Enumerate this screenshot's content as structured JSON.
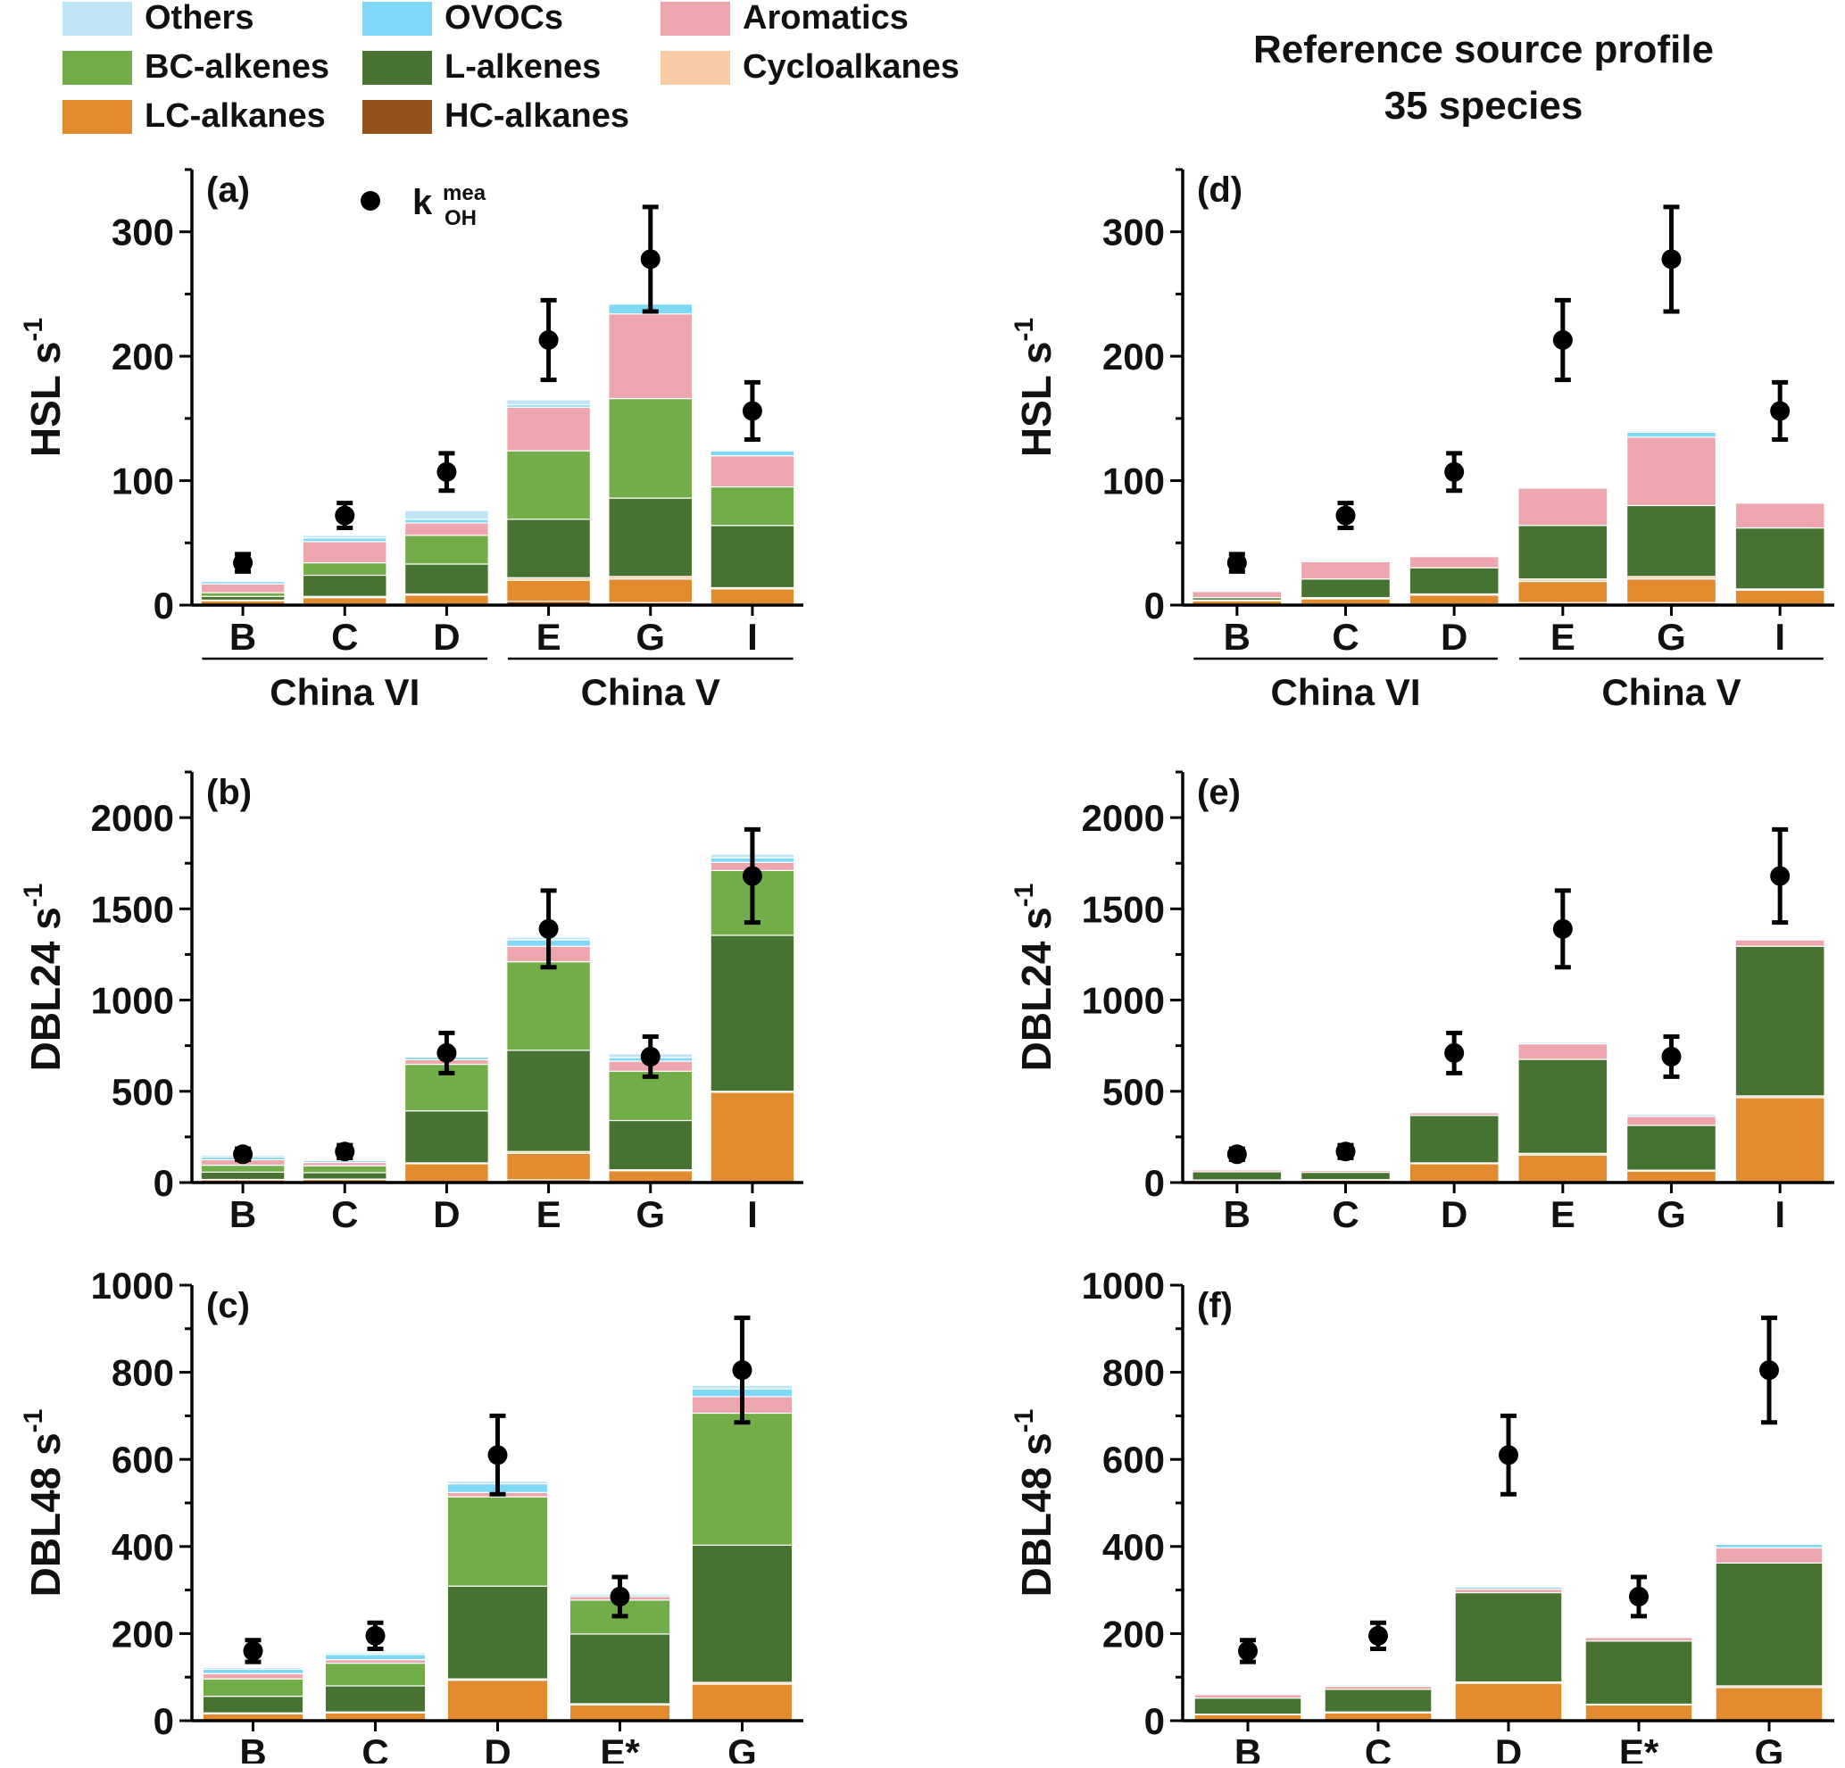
{
  "legend": [
    {
      "name": "Others",
      "color": "#bfe4f6"
    },
    {
      "name": "OVOCs",
      "color": "#7fd8f6"
    },
    {
      "name": "Aromatics",
      "color": "#eea6ae"
    },
    {
      "name": "BC-alkenes",
      "color": "#72ad4a"
    },
    {
      "name": "L-alkenes",
      "color": "#477332"
    },
    {
      "name": "Cycloalkanes",
      "color": "#f8cba4"
    },
    {
      "name": "LC-alkanes",
      "color": "#e28a2e"
    },
    {
      "name": "HC-alkanes",
      "color": "#94521b"
    }
  ],
  "reference_title": {
    "line1": "Reference source profile",
    "line2": "35 species"
  },
  "marker_label": {
    "main": "k",
    "sup": "mea",
    "sub": "OH"
  },
  "group_labels": {
    "china_vi": "China VI",
    "china_v": "China V"
  },
  "chart_data": [
    {
      "id": "a",
      "panel_label": "(a)",
      "type": "bar",
      "stacked": true,
      "ylabel": "HSL s",
      "ylabel_sup": "-1",
      "ylim": [
        0,
        350
      ],
      "yticks": [
        0,
        100,
        200,
        300
      ],
      "categories": [
        "B",
        "C",
        "D",
        "E",
        "G",
        "I"
      ],
      "groups": [
        {
          "label": "China VI",
          "from": 0,
          "to": 2
        },
        {
          "label": "China V",
          "from": 3,
          "to": 5
        }
      ],
      "series_order": [
        "HC-alkanes",
        "LC-alkanes",
        "Cycloalkanes",
        "L-alkenes",
        "BC-alkenes",
        "Aromatics",
        "OVOCs",
        "Others"
      ],
      "series": [
        {
          "name": "HC-alkanes",
          "values": [
            0.5,
            1,
            1,
            3,
            2,
            1
          ]
        },
        {
          "name": "LC-alkanes",
          "values": [
            3,
            5,
            7,
            17,
            19,
            12
          ]
        },
        {
          "name": "Cycloalkanes",
          "values": [
            0.5,
            1,
            1,
            2,
            2,
            1
          ]
        },
        {
          "name": "L-alkenes",
          "values": [
            3,
            17,
            24,
            47,
            63,
            50
          ]
        },
        {
          "name": "BC-alkenes",
          "values": [
            3,
            10,
            23,
            55,
            80,
            31
          ]
        },
        {
          "name": "Aromatics",
          "values": [
            7,
            17,
            10,
            35,
            68,
            25
          ]
        },
        {
          "name": "OVOCs",
          "values": [
            2,
            3,
            3,
            2,
            8,
            4
          ]
        },
        {
          "name": "Others",
          "values": [
            1,
            2,
            7,
            4,
            1,
            1
          ]
        }
      ],
      "measured": {
        "name": "k OH mea",
        "values": [
          34,
          72,
          107,
          213,
          278,
          156
        ],
        "err": [
          7,
          10,
          15,
          32,
          42,
          23
        ]
      }
    },
    {
      "id": "b",
      "panel_label": "(b)",
      "type": "bar",
      "stacked": true,
      "ylabel": "DBL24 s",
      "ylabel_sup": "-1",
      "ylim": [
        0,
        2250
      ],
      "yticks": [
        0,
        500,
        1000,
        1500,
        2000
      ],
      "categories": [
        "B",
        "C",
        "D",
        "E",
        "G",
        "I"
      ],
      "series_order": [
        "HC-alkanes",
        "LC-alkanes",
        "Cycloalkanes",
        "L-alkenes",
        "BC-alkenes",
        "Aromatics",
        "OVOCs",
        "Others"
      ],
      "series": [
        {
          "name": "HC-alkanes",
          "values": [
            2,
            2,
            3,
            15,
            3,
            5
          ]
        },
        {
          "name": "LC-alkanes",
          "values": [
            13,
            15,
            100,
            145,
            62,
            490
          ]
        },
        {
          "name": "Cycloalkanes",
          "values": [
            2,
            2,
            5,
            10,
            5,
            5
          ]
        },
        {
          "name": "L-alkenes",
          "values": [
            40,
            35,
            285,
            555,
            270,
            855
          ]
        },
        {
          "name": "BC-alkenes",
          "values": [
            38,
            38,
            255,
            485,
            270,
            355
          ]
        },
        {
          "name": "Aromatics",
          "values": [
            30,
            18,
            25,
            85,
            55,
            45
          ]
        },
        {
          "name": "OVOCs",
          "values": [
            15,
            10,
            15,
            35,
            20,
            25
          ]
        },
        {
          "name": "Others",
          "values": [
            10,
            5,
            5,
            15,
            20,
            20
          ]
        }
      ],
      "measured": {
        "name": "k OH mea",
        "values": [
          155,
          170,
          710,
          1390,
          690,
          1680
        ],
        "err": [
          30,
          35,
          110,
          210,
          110,
          255
        ]
      }
    },
    {
      "id": "c",
      "panel_label": "(c)",
      "type": "bar",
      "stacked": true,
      "ylabel": "DBL48 s",
      "ylabel_sup": "-1",
      "ylim": [
        0,
        1000
      ],
      "yticks": [
        0,
        200,
        400,
        600,
        800,
        1000
      ],
      "categories": [
        "B",
        "C",
        "D",
        "E*",
        "G"
      ],
      "series_order": [
        "HC-alkanes",
        "LC-alkanes",
        "Cycloalkanes",
        "L-alkenes",
        "BC-alkenes",
        "Aromatics",
        "OVOCs",
        "Others"
      ],
      "series": [
        {
          "name": "HC-alkanes",
          "values": [
            1,
            1,
            1,
            1,
            1
          ]
        },
        {
          "name": "LC-alkanes",
          "values": [
            15,
            17,
            92,
            35,
            83
          ]
        },
        {
          "name": "Cycloalkanes",
          "values": [
            2,
            2,
            3,
            3,
            4
          ]
        },
        {
          "name": "L-alkenes",
          "values": [
            38,
            60,
            213,
            160,
            315
          ]
        },
        {
          "name": "BC-alkenes",
          "values": [
            40,
            52,
            205,
            78,
            303
          ]
        },
        {
          "name": "Aromatics",
          "values": [
            12,
            8,
            10,
            8,
            38
          ]
        },
        {
          "name": "OVOCs",
          "values": [
            10,
            12,
            20,
            4,
            18
          ]
        },
        {
          "name": "Others",
          "values": [
            4,
            4,
            6,
            3,
            8
          ]
        }
      ],
      "measured": {
        "name": "k OH mea",
        "values": [
          160,
          195,
          610,
          285,
          805
        ],
        "err": [
          25,
          30,
          90,
          45,
          120
        ]
      }
    },
    {
      "id": "d",
      "panel_label": "(d)",
      "type": "bar",
      "stacked": true,
      "ylabel": "HSL s",
      "ylabel_sup": "-1",
      "ylim": [
        0,
        350
      ],
      "yticks": [
        0,
        100,
        200,
        300
      ],
      "categories": [
        "B",
        "C",
        "D",
        "E",
        "G",
        "I"
      ],
      "groups": [
        {
          "label": "China VI",
          "from": 0,
          "to": 2
        },
        {
          "label": "China V",
          "from": 3,
          "to": 5
        }
      ],
      "series_order": [
        "HC-alkanes",
        "LC-alkanes",
        "Cycloalkanes",
        "L-alkenes",
        "BC-alkenes",
        "Aromatics",
        "OVOCs",
        "Others"
      ],
      "series": [
        {
          "name": "HC-alkanes",
          "values": [
            0.5,
            1,
            1,
            2,
            2,
            1
          ]
        },
        {
          "name": "LC-alkanes",
          "values": [
            3,
            4,
            7,
            17,
            19,
            11
          ]
        },
        {
          "name": "Cycloalkanes",
          "values": [
            0.5,
            1,
            1,
            2,
            2,
            1
          ]
        },
        {
          "name": "L-alkenes",
          "values": [
            2,
            15,
            21,
            43,
            57,
            49
          ]
        },
        {
          "name": "BC-alkenes",
          "values": [
            0,
            0,
            0,
            0,
            0,
            0
          ]
        },
        {
          "name": "Aromatics",
          "values": [
            5,
            14,
            9,
            30,
            55,
            20
          ]
        },
        {
          "name": "OVOCs",
          "values": [
            0.5,
            1,
            1,
            1,
            4,
            1
          ]
        },
        {
          "name": "Others",
          "values": [
            0.5,
            1,
            1,
            0.5,
            1,
            0.5
          ]
        }
      ],
      "measured": {
        "name": "k OH mea",
        "values": [
          34,
          72,
          107,
          213,
          278,
          156
        ],
        "err": [
          7,
          10,
          15,
          32,
          42,
          23
        ]
      }
    },
    {
      "id": "e",
      "panel_label": "(e)",
      "type": "bar",
      "stacked": true,
      "ylabel": "DBL24 s",
      "ylabel_sup": "-1",
      "ylim": [
        0,
        2250
      ],
      "yticks": [
        0,
        500,
        1000,
        1500,
        2000
      ],
      "categories": [
        "B",
        "C",
        "D",
        "E",
        "G",
        "I"
      ],
      "series_order": [
        "HC-alkanes",
        "LC-alkanes",
        "Cycloalkanes",
        "L-alkenes",
        "BC-alkenes",
        "Aromatics",
        "OVOCs",
        "Others"
      ],
      "series": [
        {
          "name": "HC-alkanes",
          "values": [
            2,
            2,
            3,
            5,
            3,
            5
          ]
        },
        {
          "name": "LC-alkanes",
          "values": [
            10,
            12,
            100,
            145,
            60,
            460
          ]
        },
        {
          "name": "Cycloalkanes",
          "values": [
            2,
            2,
            5,
            10,
            5,
            10
          ]
        },
        {
          "name": "L-alkenes",
          "values": [
            45,
            40,
            260,
            515,
            245,
            820
          ]
        },
        {
          "name": "BC-alkenes",
          "values": [
            0,
            0,
            0,
            0,
            0,
            0
          ]
        },
        {
          "name": "Aromatics",
          "values": [
            10,
            10,
            15,
            85,
            50,
            35
          ]
        },
        {
          "name": "OVOCs",
          "values": [
            3,
            3,
            5,
            8,
            10,
            5
          ]
        },
        {
          "name": "Others",
          "values": [
            2,
            2,
            2,
            2,
            2,
            2
          ]
        }
      ],
      "measured": {
        "name": "k OH mea",
        "values": [
          155,
          170,
          710,
          1390,
          690,
          1680
        ],
        "err": [
          30,
          35,
          110,
          210,
          110,
          255
        ]
      }
    },
    {
      "id": "f",
      "panel_label": "(f)",
      "type": "bar",
      "stacked": true,
      "ylabel": "DBL48 s",
      "ylabel_sup": "-1",
      "ylim": [
        0,
        1000
      ],
      "yticks": [
        0,
        200,
        400,
        600,
        800,
        1000
      ],
      "categories": [
        "B",
        "C",
        "D",
        "E*",
        "G"
      ],
      "series_order": [
        "HC-alkanes",
        "LC-alkanes",
        "Cycloalkanes",
        "L-alkenes",
        "BC-alkenes",
        "Aromatics",
        "OVOCs",
        "Others"
      ],
      "series": [
        {
          "name": "HC-alkanes",
          "values": [
            1,
            1,
            1,
            1,
            1
          ]
        },
        {
          "name": "LC-alkanes",
          "values": [
            13,
            17,
            85,
            35,
            75
          ]
        },
        {
          "name": "Cycloalkanes",
          "values": [
            1,
            2,
            3,
            2,
            4
          ]
        },
        {
          "name": "L-alkenes",
          "values": [
            37,
            52,
            205,
            145,
            282
          ]
        },
        {
          "name": "BC-alkenes",
          "values": [
            0,
            0,
            0,
            0,
            0
          ]
        },
        {
          "name": "Aromatics",
          "values": [
            8,
            7,
            8,
            8,
            35
          ]
        },
        {
          "name": "OVOCs",
          "values": [
            3,
            3,
            5,
            2,
            8
          ]
        },
        {
          "name": "Others",
          "values": [
            1,
            2,
            2,
            1,
            2
          ]
        }
      ],
      "measured": {
        "name": "k OH mea",
        "values": [
          160,
          195,
          610,
          285,
          805
        ],
        "err": [
          25,
          30,
          90,
          45,
          120
        ]
      }
    }
  ]
}
